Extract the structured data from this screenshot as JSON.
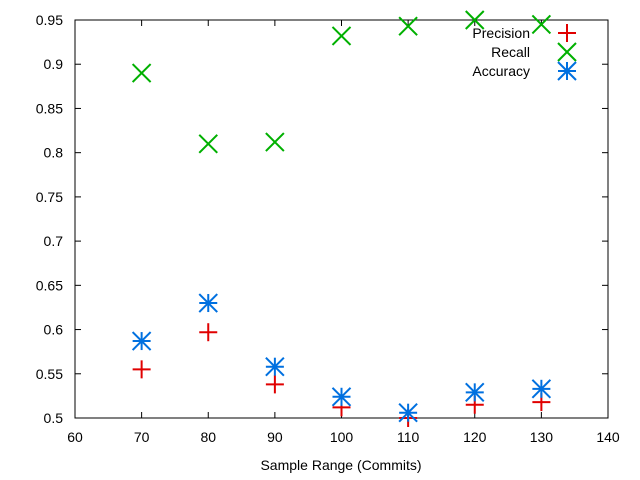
{
  "chart_data": {
    "type": "scatter",
    "title": "",
    "xlabel": "Sample Range (Commits)",
    "ylabel": "",
    "xlim": [
      60,
      140
    ],
    "ylim": [
      0.5,
      0.95
    ],
    "xticks": [
      "60",
      "70",
      "80",
      "90",
      "100",
      "110",
      "120",
      "130",
      "140"
    ],
    "yticks": [
      "0.5",
      "0.55",
      "0.6",
      "0.65",
      "0.7",
      "0.75",
      "0.8",
      "0.85",
      "0.9",
      "0.95"
    ],
    "grid": false,
    "legend_position": "top-right",
    "series": [
      {
        "name": "Precision",
        "marker": "plus",
        "color": "#e00000",
        "x": [
          70,
          80,
          90,
          100,
          110,
          120,
          130
        ],
        "y": [
          0.555,
          0.597,
          0.538,
          0.512,
          0.5,
          0.515,
          0.518
        ]
      },
      {
        "name": "Recall",
        "marker": "cross",
        "color": "#00b000",
        "x": [
          70,
          80,
          90,
          100,
          110,
          120,
          130
        ],
        "y": [
          0.89,
          0.81,
          0.812,
          0.932,
          0.943,
          0.95,
          0.945
        ]
      },
      {
        "name": "Accuracy",
        "marker": "star",
        "color": "#0070e0",
        "x": [
          70,
          80,
          90,
          100,
          110,
          120,
          130
        ],
        "y": [
          0.587,
          0.63,
          0.558,
          0.524,
          0.506,
          0.529,
          0.533
        ]
      }
    ]
  }
}
